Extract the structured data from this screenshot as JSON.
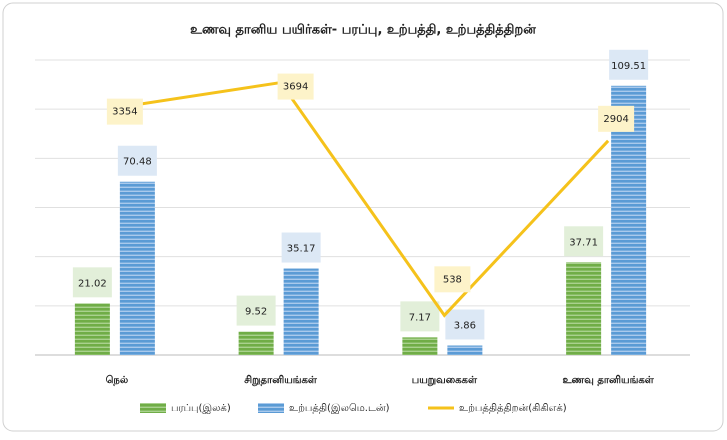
{
  "chart_data": {
    "type": "bar_line",
    "title": "உணவு தானிய பயிர்கள்- பரப்பு, உற்பத்தி, உற்பத்தித்திறன்",
    "categories": [
      "நெல்",
      "சிறுதானியங்கள்",
      "பயறுவகைகள்",
      "உணவு தானியங்கள்"
    ],
    "series": [
      {
        "name": "பரப்பு(இலக்)",
        "color": "#70ad47",
        "values": [
          21.02,
          9.52,
          7.17,
          37.71
        ]
      },
      {
        "name": "உற்பத்தி(இலமெ.டன்)",
        "color": "#5b9bd5",
        "values": [
          70.48,
          35.17,
          3.86,
          109.51
        ]
      },
      {
        "name": "உற்பத்தித்திறன்(கிகிஎக்)",
        "color": "#f5c21b",
        "values": [
          3354,
          3694,
          538,
          2904
        ],
        "axis": "y2"
      }
    ],
    "ylim": [
      0,
      120
    ],
    "yticks": [
      0,
      20,
      40,
      60,
      80,
      100,
      120
    ],
    "y2lim": [
      0,
      4000
    ],
    "grid": true,
    "legend": "bottom"
  }
}
